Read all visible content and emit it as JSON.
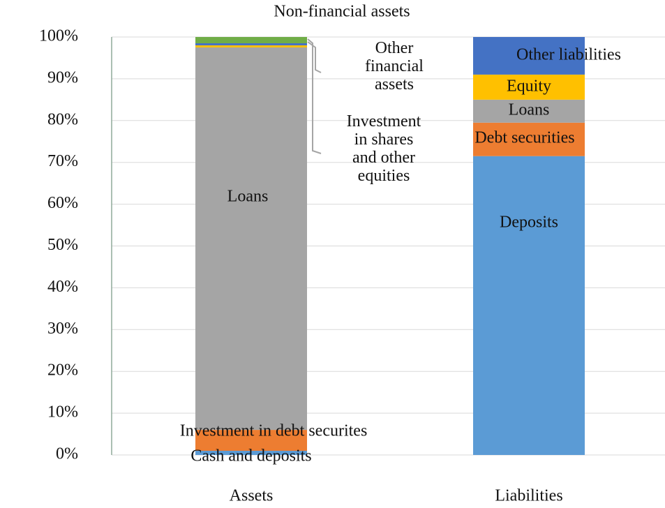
{
  "chart_data": {
    "type": "bar",
    "stacked": true,
    "categories": [
      "Assets",
      "Liabilities"
    ],
    "series": [
      {
        "name": "Cash and deposits",
        "color": "#5b9bd5",
        "values": [
          1,
          null
        ]
      },
      {
        "name": "Investment in debt securites",
        "color": "#ed7d31",
        "values": [
          5,
          null
        ]
      },
      {
        "name": "Deposits",
        "color": "#5b9bd5",
        "values": [
          null,
          71.5
        ]
      },
      {
        "name": "Debt securities",
        "color": "#ed7d31",
        "values": [
          null,
          8
        ]
      },
      {
        "name": "Loans",
        "color": "#a5a5a5",
        "values": [
          91.5,
          5.5
        ]
      },
      {
        "name": "Investment in shares and other equities",
        "color": "#ffc000",
        "values": [
          0.5,
          null
        ]
      },
      {
        "name": "Equity",
        "color": "#ffc000",
        "values": [
          null,
          6
        ]
      },
      {
        "name": "Other financial assets",
        "color": "#4472c4",
        "values": [
          0.5,
          null
        ]
      },
      {
        "name": "Other liabilities",
        "color": "#4472c4",
        "values": [
          null,
          9
        ]
      },
      {
        "name": "Non-financial assets",
        "color": "#70ad47",
        "values": [
          1.5,
          null
        ]
      }
    ],
    "ylim": [
      0,
      100
    ],
    "yticks": [
      {
        "value": 0,
        "label": "0%"
      },
      {
        "value": 10,
        "label": "10%"
      },
      {
        "value": 20,
        "label": "20%"
      },
      {
        "value": 30,
        "label": "30%"
      },
      {
        "value": 40,
        "label": "40%"
      },
      {
        "value": 50,
        "label": "50%"
      },
      {
        "value": 60,
        "label": "60%"
      },
      {
        "value": 70,
        "label": "70%"
      },
      {
        "value": 80,
        "label": "80%"
      },
      {
        "value": 90,
        "label": "90%"
      },
      {
        "value": 100,
        "label": "100%"
      }
    ],
    "grid": true
  }
}
